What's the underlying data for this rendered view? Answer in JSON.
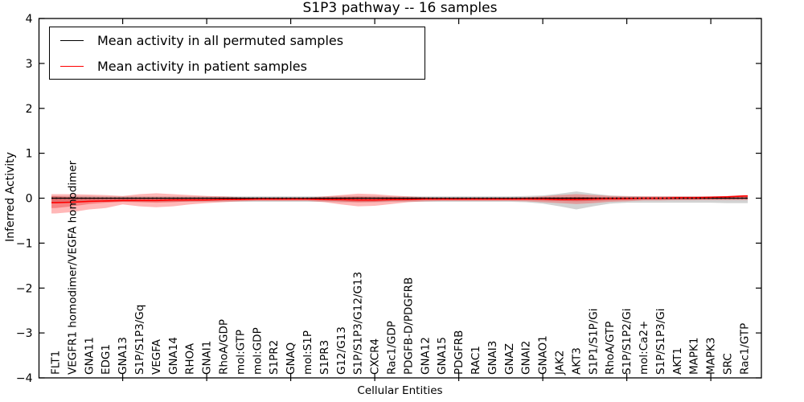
{
  "chart_data": {
    "type": "line",
    "title": "S1P3 pathway -- 16 samples",
    "xlabel": "Cellular Entities",
    "ylabel": "Inferred Activity",
    "ylim": [
      -4,
      4
    ],
    "yticks": [
      4,
      3,
      2,
      1,
      0,
      -1,
      -2,
      -3,
      -4
    ],
    "ytick_labels": [
      "4",
      "3",
      "2",
      "1",
      "0",
      "−1",
      "−2",
      "−3",
      "−4"
    ],
    "grid": false,
    "legend_position": "upper left",
    "x_major_tick_every": 5,
    "legend": [
      {
        "label": "Mean activity in all permuted samples",
        "color": "#000000"
      },
      {
        "label": "Mean activity in patient samples",
        "color": "#ff0000"
      }
    ],
    "categories": [
      "FLT1",
      "VEGFR1 homodimer/VEGFA homodimer",
      "GNA11",
      "EDG1",
      "GNA13",
      "S1P/S1P3/Gq",
      "VEGFA",
      "GNA14",
      "RHOA",
      "GNAI1",
      "RhoA/GDP",
      "mol:GTP",
      "mol:GDP",
      "S1PR2",
      "GNAQ",
      "mol:S1P",
      "S1PR3",
      "G12/G13",
      "S1P/S1P3/G12/G13",
      "CXCR4",
      "Rac1/GDP",
      "PDGFB-D/PDGFRB",
      "GNA12",
      "GNA15",
      "PDGFRB",
      "RAC1",
      "GNAI3",
      "GNAZ",
      "GNAI2",
      "GNAO1",
      "JAK2",
      "AKT3",
      "S1P1/S1P/Gi",
      "RhoA/GTP",
      "S1P/S1P2/Gi",
      "mol:Ca2+",
      "S1P/S1P3/Gi",
      "AKT1",
      "MAPK1",
      "MAPK3",
      "SRC",
      "Rac1/GTP"
    ],
    "series": [
      {
        "name": "Mean activity in all permuted samples",
        "color": "#000000",
        "style": "solid-with-dotted-overlay",
        "values": [
          0,
          0,
          0,
          0,
          0,
          0,
          0,
          0,
          0,
          0,
          0,
          0,
          0,
          0,
          0,
          0,
          0,
          0,
          0,
          0,
          0,
          0,
          0,
          0,
          0,
          0,
          0,
          0,
          0,
          0,
          0,
          0,
          0,
          0,
          0,
          0,
          0,
          0,
          0,
          0,
          0,
          0
        ]
      },
      {
        "name": "Mean activity in patient samples",
        "color": "#ff0000",
        "style": "solid",
        "values": [
          -0.1,
          -0.09,
          -0.07,
          -0.06,
          -0.05,
          -0.05,
          -0.05,
          -0.04,
          -0.04,
          -0.04,
          -0.03,
          -0.03,
          -0.02,
          -0.02,
          -0.02,
          -0.02,
          -0.03,
          -0.03,
          -0.04,
          -0.04,
          -0.03,
          -0.03,
          -0.02,
          -0.02,
          -0.02,
          -0.02,
          -0.02,
          -0.02,
          -0.02,
          -0.02,
          -0.03,
          -0.03,
          -0.02,
          -0.01,
          -0.01,
          0.0,
          0.0,
          0.01,
          0.01,
          0.02,
          0.03,
          0.05
        ]
      }
    ],
    "bands": [
      {
        "name": "permuted-samples-range",
        "color": "rgba(115,115,115,0.32)",
        "hi": [
          0.05,
          0.05,
          0.05,
          0.04,
          0.04,
          0.04,
          0.04,
          0.04,
          0.04,
          0.04,
          0.04,
          0.04,
          0.04,
          0.04,
          0.04,
          0.04,
          0.04,
          0.05,
          0.05,
          0.05,
          0.04,
          0.04,
          0.04,
          0.04,
          0.04,
          0.04,
          0.04,
          0.04,
          0.05,
          0.06,
          0.1,
          0.15,
          0.1,
          0.06,
          0.05,
          0.04,
          0.04,
          0.04,
          0.04,
          0.04,
          0.04,
          0.04
        ],
        "lo": [
          -0.09,
          -0.09,
          -0.08,
          -0.08,
          -0.08,
          -0.08,
          -0.08,
          -0.08,
          -0.08,
          -0.08,
          -0.08,
          -0.08,
          -0.08,
          -0.08,
          -0.08,
          -0.08,
          -0.08,
          -0.09,
          -0.09,
          -0.09,
          -0.08,
          -0.08,
          -0.08,
          -0.08,
          -0.08,
          -0.08,
          -0.08,
          -0.08,
          -0.09,
          -0.12,
          -0.18,
          -0.25,
          -0.18,
          -0.12,
          -0.1,
          -0.1,
          -0.1,
          -0.1,
          -0.1,
          -0.1,
          -0.11,
          -0.11
        ]
      },
      {
        "name": "patient-samples-range-outer",
        "color": "rgba(255,40,40,0.33)",
        "hi": [
          0.09,
          0.09,
          0.08,
          0.07,
          0.05,
          0.09,
          0.11,
          0.09,
          0.07,
          0.05,
          0.04,
          0.02,
          0.01,
          0.01,
          0.01,
          0.01,
          0.04,
          0.07,
          0.1,
          0.09,
          0.06,
          0.04,
          0.02,
          0.01,
          0.01,
          0.01,
          0.01,
          0.01,
          0.02,
          0.04,
          0.07,
          0.09,
          0.07,
          0.05,
          0.04,
          0.04,
          0.04,
          0.04,
          0.04,
          0.04,
          0.05,
          0.06
        ],
        "lo": [
          -0.34,
          -0.31,
          -0.25,
          -0.22,
          -0.14,
          -0.18,
          -0.2,
          -0.18,
          -0.14,
          -0.11,
          -0.09,
          -0.07,
          -0.06,
          -0.06,
          -0.06,
          -0.06,
          -0.09,
          -0.14,
          -0.18,
          -0.17,
          -0.13,
          -0.09,
          -0.07,
          -0.06,
          -0.06,
          -0.06,
          -0.06,
          -0.06,
          -0.07,
          -0.09,
          -0.11,
          -0.13,
          -0.11,
          -0.08,
          -0.07,
          -0.05,
          -0.05,
          -0.04,
          -0.04,
          -0.04,
          -0.04,
          -0.04
        ]
      },
      {
        "name": "patient-samples-range-inner",
        "color": "rgba(235,20,20,0.33)",
        "hi": [
          0.04,
          0.02,
          0.01,
          0.0,
          0.0,
          0.0,
          0.01,
          0.0,
          0.0,
          0.0,
          0.0,
          0.0,
          0.01,
          0.01,
          0.01,
          0.01,
          0.01,
          0.02,
          0.03,
          0.02,
          0.02,
          0.01,
          0.01,
          0.01,
          0.01,
          0.01,
          0.01,
          0.01,
          0.01,
          0.02,
          0.02,
          0.03,
          0.02,
          0.02,
          0.02,
          0.02,
          0.02,
          0.02,
          0.02,
          0.03,
          0.04,
          0.05
        ],
        "lo": [
          -0.22,
          -0.18,
          -0.13,
          -0.1,
          -0.08,
          -0.09,
          -0.1,
          -0.09,
          -0.07,
          -0.06,
          -0.05,
          -0.04,
          -0.04,
          -0.04,
          -0.04,
          -0.04,
          -0.05,
          -0.07,
          -0.09,
          -0.08,
          -0.06,
          -0.05,
          -0.04,
          -0.04,
          -0.04,
          -0.04,
          -0.04,
          -0.04,
          -0.04,
          -0.05,
          -0.06,
          -0.07,
          -0.06,
          -0.05,
          -0.04,
          -0.03,
          -0.03,
          -0.03,
          -0.03,
          -0.02,
          -0.02,
          -0.01
        ]
      }
    ],
    "axis_color": "#000000",
    "background_color": "#ffffff"
  }
}
